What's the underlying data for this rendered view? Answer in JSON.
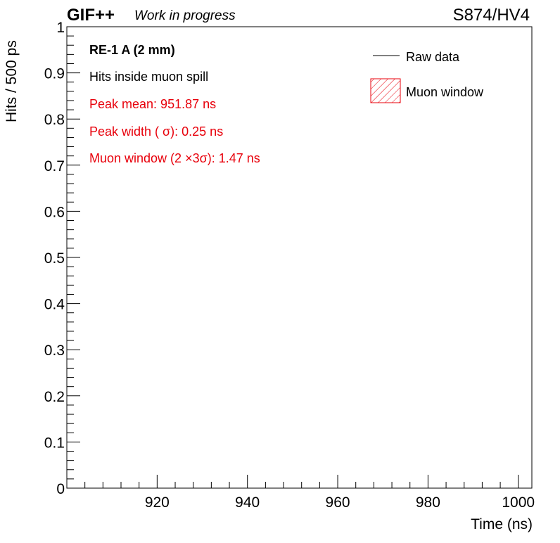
{
  "header": {
    "logo": "GIF++",
    "tagline": "Work in progress",
    "run": "S874/HV4"
  },
  "annotations": [
    {
      "text": "RE-1 A (2 mm)",
      "color": "#000000"
    },
    {
      "text": "Hits inside muon spill",
      "color": "#000000"
    },
    {
      "text": "Peak mean: 951.87 ns",
      "color": "#e8000b"
    },
    {
      "text": "Peak width ( σ): 0.25 ns",
      "color": "#e8000b"
    },
    {
      "text": "Muon window (2 ×3σ): 1.47 ns",
      "color": "#e8000b"
    }
  ],
  "legend": [
    {
      "label": "Raw data",
      "style": "line",
      "color": "#000000"
    },
    {
      "label": "Muon window",
      "style": "hatched-box",
      "color": "#e8000b"
    }
  ],
  "chart_data": {
    "type": "line",
    "xlabel": "Time (ns)",
    "ylabel": "Hits / 500 ps",
    "xlim": [
      900,
      1003
    ],
    "ylim": [
      0,
      1
    ],
    "x_ticks": [
      920,
      940,
      960,
      980,
      1000
    ],
    "x_tick_labels": [
      "920",
      "940",
      "960",
      "980",
      "1000"
    ],
    "y_ticks": [
      0,
      0.1,
      0.2,
      0.3,
      0.4,
      0.5,
      0.6,
      0.7,
      0.8,
      0.9,
      1
    ],
    "y_tick_labels": [
      "0",
      "0.1",
      "0.2",
      "0.3",
      "0.4",
      "0.5",
      "0.6",
      "0.7",
      "0.8",
      "0.9",
      "1"
    ],
    "grid": false,
    "legend_position": "top-right",
    "series": [
      {
        "name": "Raw data",
        "x": [],
        "y": []
      }
    ]
  }
}
